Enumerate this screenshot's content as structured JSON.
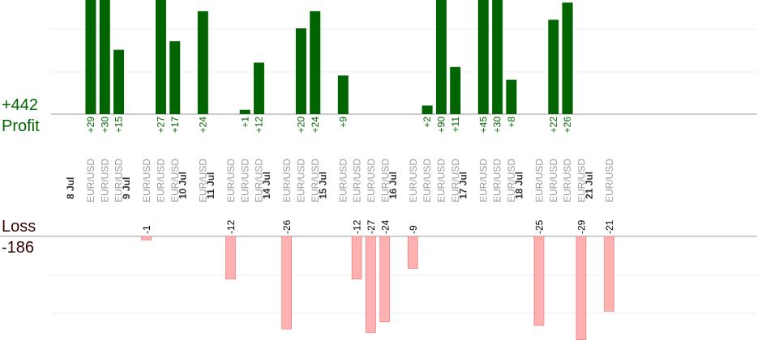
{
  "summary": {
    "profit_total": "+442",
    "profit_label": "Profit",
    "loss_label": "Loss",
    "loss_total": "-186"
  },
  "chart_data": {
    "type": "bar",
    "colors": {
      "profit": "#006400",
      "loss": "#ffb0b0",
      "loss_border": "#e07070",
      "label_profit": "#006400",
      "label_loss": "#000000"
    },
    "days": [
      {
        "label": "8 Jul",
        "slots": [
          {
            "pair": "EUR/USD",
            "value": 29
          },
          {
            "pair": "EUR/USD",
            "value": 30
          },
          {
            "pair": "EUR/USD",
            "value": 15
          }
        ]
      },
      {
        "label": "9 Jul",
        "slots": [
          {
            "pair": "EUR/USD",
            "value": -1
          },
          {
            "pair": "EUR/USD",
            "value": 27
          },
          {
            "pair": "EUR/USD",
            "value": 17
          }
        ]
      },
      {
        "label": "10 Jul",
        "slots": [
          {
            "pair": "EUR/USD",
            "value": 24
          }
        ]
      },
      {
        "label": "11 Jul",
        "slots": [
          {
            "pair": "EUR/USD",
            "value": -12
          },
          {
            "pair": "EUR/USD",
            "value": 1
          },
          {
            "pair": "EUR/USD",
            "value": 12
          }
        ]
      },
      {
        "label": "14 Jul",
        "slots": [
          {
            "pair": "EUR/USD",
            "value": -26
          },
          {
            "pair": "EUR/USD",
            "value": 20
          },
          {
            "pair": "EUR/USD",
            "value": 24
          }
        ]
      },
      {
        "label": "15 Jul",
        "slots": [
          {
            "pair": "EUR/USD",
            "value": 9
          },
          {
            "pair": "EUR/USD",
            "value": -12
          },
          {
            "pair": "EUR/USD",
            "value": -27
          },
          {
            "pair": "EUR/USD",
            "value": -24
          }
        ]
      },
      {
        "label": "16 Jul",
        "slots": [
          {
            "pair": "EUR/USD",
            "value": -9
          },
          {
            "pair": "EUR/USD",
            "value": 2
          },
          {
            "pair": "EUR/USD",
            "value": 90
          },
          {
            "pair": "EUR/USD",
            "value": 11
          }
        ]
      },
      {
        "label": "17 Jul",
        "slots": [
          {
            "pair": "EUR/USD",
            "value": 45
          },
          {
            "pair": "EUR/USD",
            "value": 30
          },
          {
            "pair": "EUR/USD",
            "value": 8
          }
        ]
      },
      {
        "label": "18 Jul",
        "slots": [
          {
            "pair": "EUR/USD",
            "value": -25
          },
          {
            "pair": "EUR/USD",
            "value": 22
          },
          {
            "pair": "EUR/USD",
            "value": 26
          },
          {
            "pair": "EUR/USD",
            "value": -29
          }
        ]
      },
      {
        "label": "21 Jul",
        "slots": [
          {
            "pair": "EUR/USD",
            "value": -21
          }
        ]
      }
    ]
  }
}
